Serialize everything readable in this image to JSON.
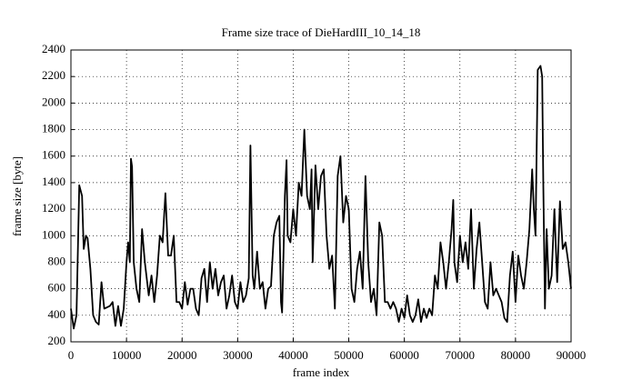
{
  "chart_data": {
    "type": "line",
    "title": "Frame size trace of DieHardIII_10_14_18",
    "x_label": "frame index",
    "y_label": "frame size [byte]",
    "color": "#000000",
    "grid": true,
    "xlim": [
      0,
      90000
    ],
    "ylim": [
      200,
      2400
    ],
    "xticks": [
      0,
      10000,
      20000,
      30000,
      40000,
      50000,
      60000,
      70000,
      80000,
      90000
    ],
    "yticks": [
      200,
      400,
      600,
      800,
      1000,
      1200,
      1400,
      1600,
      1800,
      2000,
      2200,
      2400
    ],
    "x": [
      0,
      500,
      1000,
      1500,
      2000,
      2300,
      2700,
      3000,
      3500,
      4000,
      4500,
      5000,
      5500,
      6000,
      7000,
      7500,
      8000,
      8500,
      9000,
      9500,
      10000,
      10300,
      10600,
      10800,
      11000,
      11300,
      11800,
      12300,
      12800,
      13300,
      14000,
      14500,
      15000,
      15500,
      16000,
      16500,
      17000,
      17500,
      18000,
      18500,
      19000,
      19500,
      20000,
      20500,
      21000,
      21500,
      22000,
      22500,
      23000,
      23500,
      24000,
      24500,
      25000,
      25500,
      26000,
      26500,
      27000,
      27500,
      28000,
      28500,
      29000,
      29500,
      30000,
      30500,
      31000,
      31500,
      32000,
      32300,
      32700,
      33000,
      33500,
      34000,
      34500,
      35000,
      35500,
      36000,
      36500,
      37000,
      37500,
      37800,
      38000,
      38500,
      38800,
      39000,
      39500,
      40000,
      40500,
      41000,
      41500,
      42000,
      42500,
      43000,
      43300,
      43500,
      44000,
      44500,
      45000,
      45500,
      46000,
      46500,
      47000,
      47500,
      48000,
      48500,
      49000,
      49500,
      50000,
      50500,
      51000,
      51500,
      52000,
      52500,
      53000,
      53500,
      54000,
      54500,
      55000,
      55500,
      56000,
      56500,
      57000,
      57500,
      58000,
      58500,
      59000,
      59500,
      60000,
      60500,
      61000,
      61500,
      62000,
      62500,
      63000,
      63500,
      64000,
      64500,
      65000,
      65500,
      66000,
      66500,
      67000,
      67500,
      68000,
      68500,
      68800,
      69000,
      69500,
      70000,
      70500,
      71000,
      71500,
      72000,
      72500,
      73000,
      73500,
      74000,
      74500,
      75000,
      75500,
      76000,
      76500,
      77000,
      77500,
      78000,
      78500,
      79000,
      79500,
      80000,
      80500,
      81000,
      81500,
      82000,
      82500,
      83000,
      83300,
      83600,
      84000,
      84500,
      84800,
      85000,
      85300,
      85600,
      86000,
      86500,
      87000,
      87500,
      88000,
      88500,
      89000,
      89500,
      90000
    ],
    "values": [
      450,
      300,
      400,
      1380,
      1300,
      900,
      1000,
      980,
      750,
      400,
      350,
      330,
      650,
      450,
      470,
      500,
      320,
      470,
      320,
      450,
      800,
      950,
      800,
      1580,
      1520,
      800,
      600,
      500,
      1050,
      800,
      550,
      700,
      500,
      700,
      1000,
      950,
      1320,
      850,
      850,
      1000,
      500,
      500,
      450,
      650,
      480,
      600,
      600,
      450,
      400,
      680,
      750,
      500,
      800,
      600,
      750,
      550,
      650,
      700,
      450,
      550,
      700,
      500,
      450,
      650,
      500,
      550,
      680,
      1680,
      700,
      600,
      880,
      600,
      650,
      450,
      600,
      620,
      1000,
      1100,
      1150,
      500,
      420,
      1300,
      1570,
      1000,
      950,
      1200,
      1000,
      1400,
      1300,
      1800,
      1300,
      1200,
      1500,
      800,
      1530,
      1200,
      1450,
      1500,
      1000,
      750,
      850,
      450,
      1450,
      1600,
      1100,
      1300,
      1200,
      600,
      500,
      750,
      880,
      600,
      1450,
      800,
      500,
      600,
      400,
      1100,
      1000,
      500,
      500,
      450,
      500,
      450,
      350,
      450,
      380,
      550,
      400,
      350,
      400,
      520,
      350,
      450,
      380,
      450,
      400,
      700,
      600,
      950,
      800,
      600,
      800,
      1050,
      1270,
      800,
      650,
      1000,
      800,
      950,
      750,
      1200,
      600,
      900,
      1100,
      800,
      500,
      450,
      800,
      550,
      600,
      550,
      500,
      380,
      350,
      700,
      880,
      500,
      850,
      700,
      600,
      800,
      1050,
      1500,
      1200,
      1000,
      2250,
      2280,
      2200,
      1400,
      450,
      1050,
      600,
      700,
      1200,
      650,
      1260,
      900,
      950,
      800,
      600
    ]
  }
}
